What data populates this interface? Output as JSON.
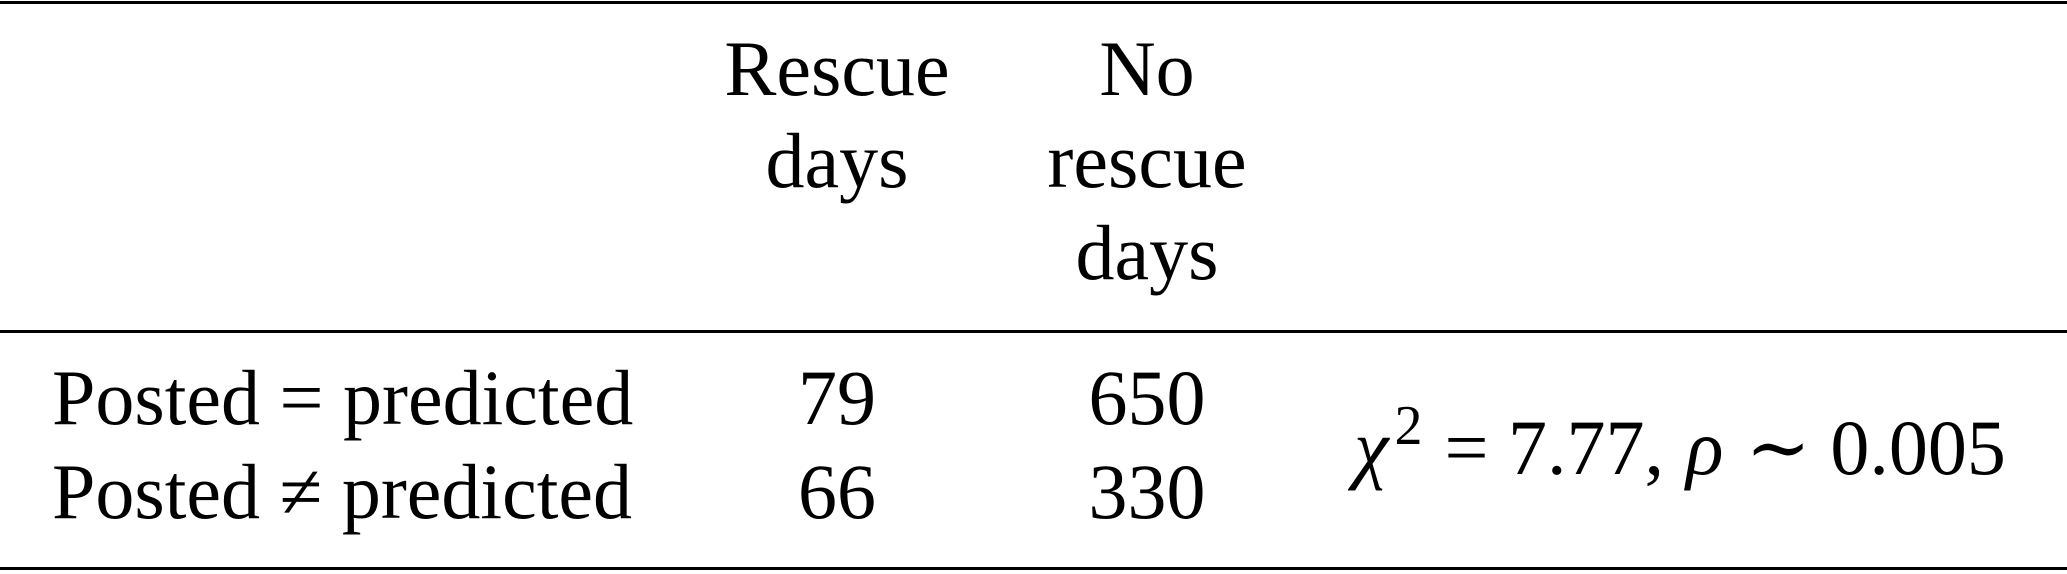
{
  "table": {
    "header": [
      [
        "Rescue",
        "days"
      ],
      [
        "No",
        "rescue",
        "days"
      ]
    ],
    "rows": [
      {
        "label": "Posted = predicted",
        "values": [
          79,
          650
        ]
      },
      {
        "label": "Posted ≠ predicted",
        "values": [
          66,
          330
        ]
      }
    ],
    "statistic": {
      "symbol": "χ",
      "exponent": "2",
      "equals": "= 7.77,",
      "p_symbol": "ρ",
      "p_part": "∼ 0.005"
    }
  }
}
